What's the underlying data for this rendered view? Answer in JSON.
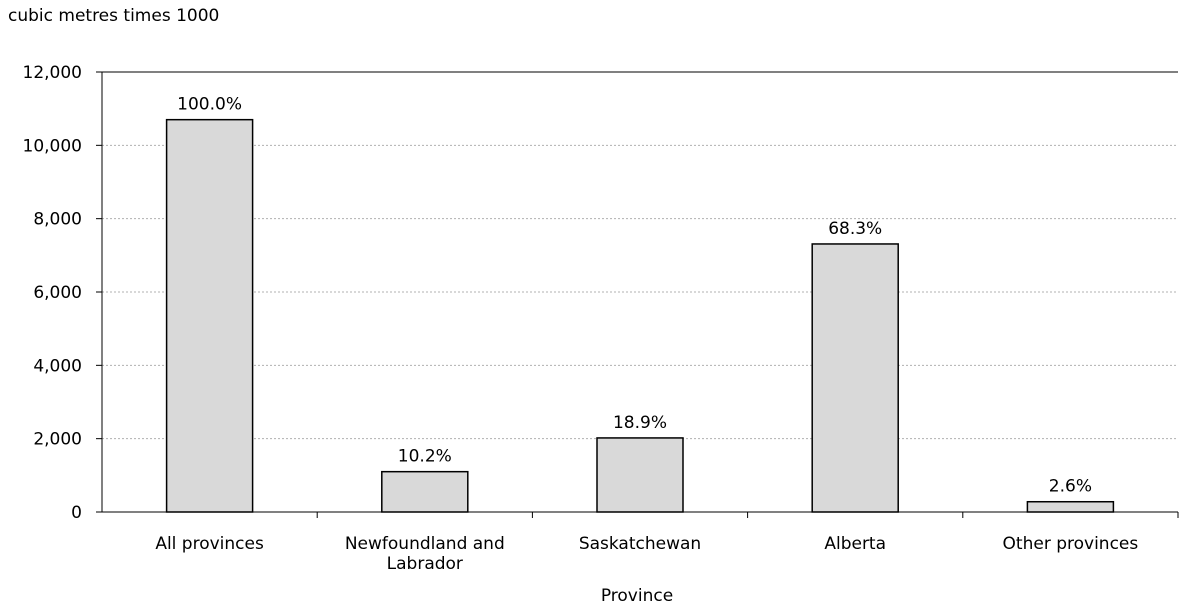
{
  "chart_data": {
    "type": "bar",
    "categories": [
      [
        "All provinces"
      ],
      [
        "Newfoundland and",
        "Labrador"
      ],
      [
        "Saskatchewan"
      ],
      [
        "Alberta"
      ],
      [
        "Other provinces"
      ]
    ],
    "values": [
      10700,
      1100,
      2020,
      7310,
      280
    ],
    "data_labels": [
      "100.0%",
      "10.2%",
      "18.9%",
      "68.3%",
      "2.6%"
    ],
    "ylabel": "cubic metres times 1000",
    "xlabel": "Province",
    "ylim": [
      0,
      12000
    ],
    "yticks": [
      0,
      2000,
      4000,
      6000,
      8000,
      10000,
      12000
    ],
    "ytick_labels": [
      "0",
      "2,000",
      "4,000",
      "6,000",
      "8,000",
      "10,000",
      "12,000"
    ],
    "grid": true,
    "legend": "none",
    "colors": {
      "bar_fill": "#d9d9d9",
      "bar_stroke": "#000000",
      "gridline": "#b0b0b0",
      "axis": "#000000"
    }
  }
}
